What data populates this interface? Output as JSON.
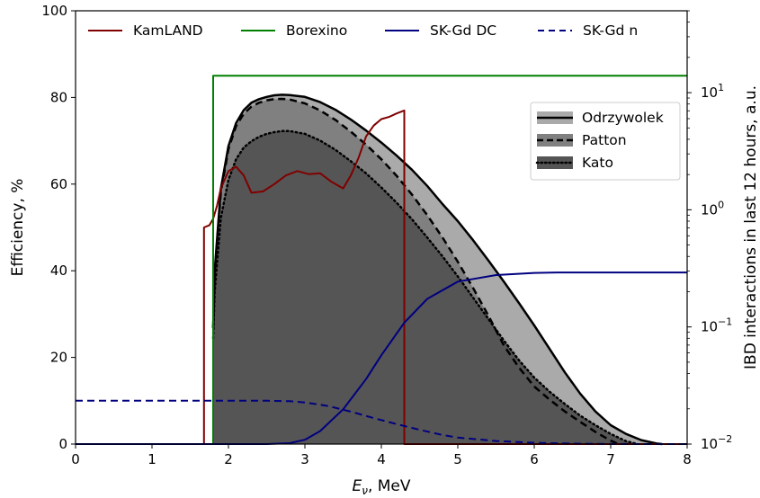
{
  "chart_data": {
    "type": "line",
    "xlabel_main": "E",
    "xlabel_sub": "ν",
    "xlabel_unit": ", MeV",
    "ylabel_left": "Efficiency, %",
    "ylabel_right": "IBD interactions in last 12 hours, a.u.",
    "xlim": [
      0,
      8
    ],
    "ylim_left": [
      0,
      100
    ],
    "ylim_right_log": [
      0.01,
      50
    ],
    "xticks": [
      "0",
      "1",
      "2",
      "3",
      "4",
      "5",
      "6",
      "7",
      "8"
    ],
    "yticks_left": [
      "0",
      "20",
      "40",
      "60",
      "80",
      "100"
    ],
    "yticks_right": [
      {
        "base": "10",
        "exp": "−2",
        "value": 0.01
      },
      {
        "base": "10",
        "exp": "−1",
        "value": 0.1
      },
      {
        "base": "10",
        "exp": "0",
        "value": 1
      },
      {
        "base": "10",
        "exp": "1",
        "value": 10
      }
    ],
    "colors": {
      "kamland": "#800000",
      "borexino": "#008000",
      "skgd": "#000080",
      "odrzywolek_fill": "#aaaaaa",
      "patton_fill": "#808080",
      "kato_fill": "#555555"
    },
    "efficiency_legend": [
      "KamLAND",
      "Borexino",
      "SK-Gd DC",
      "SK-Gd n"
    ],
    "flux_legend": [
      "Odrzywolek",
      "Patton",
      "Kato"
    ],
    "efficiency_series": [
      {
        "name": "KamLAND",
        "axis": "left",
        "style": "solid",
        "x": [
          0,
          1.68,
          1.68,
          1.75,
          1.8,
          1.85,
          1.9,
          2.0,
          2.1,
          2.2,
          2.3,
          2.45,
          2.6,
          2.75,
          2.9,
          3.05,
          3.2,
          3.35,
          3.5,
          3.6,
          3.7,
          3.8,
          3.9,
          4.0,
          4.1,
          4.2,
          4.3,
          4.3,
          8
        ],
        "y": [
          0,
          0,
          50,
          50.5,
          52,
          55,
          59,
          63,
          64,
          62,
          58,
          58.3,
          60,
          62,
          63,
          62.3,
          62.5,
          60.5,
          59,
          62,
          66,
          71,
          73.5,
          75,
          75.5,
          76.3,
          77,
          0,
          0
        ]
      },
      {
        "name": "Borexino",
        "axis": "left",
        "style": "solid",
        "x": [
          0,
          1.8,
          1.8,
          8
        ],
        "y": [
          0,
          0,
          85,
          85
        ]
      },
      {
        "name": "SK-Gd DC",
        "axis": "left",
        "style": "solid",
        "x": [
          0,
          2.0,
          2.5,
          2.8,
          3.0,
          3.2,
          3.5,
          3.8,
          4.0,
          4.3,
          4.6,
          5.0,
          5.5,
          6.0,
          6.3,
          8
        ],
        "y": [
          0,
          0,
          0,
          0.2,
          1,
          3,
          8,
          15,
          20.5,
          28,
          33.5,
          37.5,
          39,
          39.5,
          39.6,
          39.6
        ]
      },
      {
        "name": "SK-Gd n",
        "axis": "left",
        "style": "dashed",
        "x": [
          0,
          1.0,
          2.0,
          2.5,
          2.8,
          3.0,
          3.3,
          3.6,
          3.9,
          4.2,
          4.5,
          4.8,
          5.0,
          5.5,
          6.0,
          6.5,
          7.0,
          8.0
        ],
        "y": [
          10,
          10,
          10,
          10,
          9.9,
          9.6,
          8.8,
          7.5,
          6,
          4.6,
          3.3,
          2.1,
          1.5,
          0.7,
          0.3,
          0.1,
          0.03,
          0
        ]
      }
    ],
    "flux_series": [
      {
        "name": "Odrzywolek",
        "axis": "right",
        "style": "solid",
        "x": [
          1.8,
          1.82,
          1.9,
          2.0,
          2.1,
          2.2,
          2.3,
          2.4,
          2.5,
          2.6,
          2.7,
          2.8,
          3.0,
          3.2,
          3.4,
          3.6,
          3.8,
          4.0,
          4.2,
          4.4,
          4.6,
          4.8,
          5.0,
          5.2,
          5.4,
          5.6,
          5.8,
          6.0,
          6.2,
          6.4,
          6.6,
          6.8,
          7.0,
          7.2,
          7.4,
          7.6,
          7.67
        ],
        "y": [
          0.098,
          0.3,
          1.5,
          3.5,
          5.5,
          7.1,
          8.2,
          8.8,
          9.2,
          9.5,
          9.6,
          9.55,
          9.2,
          8.3,
          7.15,
          5.9,
          4.75,
          3.75,
          2.9,
          2.2,
          1.6,
          1.12,
          0.8,
          0.55,
          0.37,
          0.245,
          0.16,
          0.103,
          0.065,
          0.041,
          0.027,
          0.019,
          0.0145,
          0.0122,
          0.0108,
          0.0101,
          0.01
        ]
      },
      {
        "name": "Patton",
        "axis": "right",
        "style": "dashed",
        "x": [
          1.8,
          1.82,
          1.9,
          2.0,
          2.1,
          2.2,
          2.3,
          2.4,
          2.5,
          2.6,
          2.7,
          2.8,
          3.0,
          3.2,
          3.4,
          3.6,
          3.8,
          4.0,
          4.2,
          4.4,
          4.6,
          4.8,
          5.0,
          5.2,
          5.4,
          5.6,
          5.8,
          6.0,
          6.2,
          6.4,
          6.6,
          6.8,
          7.0,
          7.1
        ],
        "y": [
          0.098,
          0.28,
          1.4,
          3.3,
          5.2,
          6.6,
          7.6,
          8.2,
          8.6,
          8.8,
          8.85,
          8.75,
          8.1,
          7.05,
          5.85,
          4.65,
          3.6,
          2.7,
          1.95,
          1.35,
          0.9,
          0.58,
          0.36,
          0.215,
          0.125,
          0.07,
          0.045,
          0.031,
          0.024,
          0.019,
          0.0155,
          0.0127,
          0.0107,
          0.01
        ]
      },
      {
        "name": "Kato",
        "axis": "right",
        "style": "dotted",
        "x": [
          1.8,
          1.82,
          1.9,
          2.0,
          2.1,
          2.2,
          2.3,
          2.4,
          2.5,
          2.6,
          2.7,
          2.8,
          3.0,
          3.2,
          3.4,
          3.6,
          3.8,
          4.0,
          4.2,
          4.4,
          4.6,
          4.8,
          5.0,
          5.2,
          5.4,
          5.6,
          5.8,
          6.0,
          6.2,
          6.4,
          6.6,
          6.8,
          7.0,
          7.2,
          7.35
        ],
        "y": [
          0.08,
          0.2,
          0.85,
          1.8,
          2.7,
          3.4,
          3.85,
          4.2,
          4.45,
          4.6,
          4.7,
          4.7,
          4.45,
          3.9,
          3.25,
          2.6,
          2.05,
          1.55,
          1.15,
          0.83,
          0.58,
          0.4,
          0.27,
          0.178,
          0.117,
          0.077,
          0.052,
          0.037,
          0.028,
          0.022,
          0.0175,
          0.0145,
          0.0122,
          0.0106,
          0.01
        ]
      }
    ]
  }
}
